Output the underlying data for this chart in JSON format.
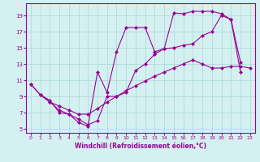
{
  "xlabel": "Windchill (Refroidissement éolien,°C)",
  "bg_color": "#d5f0f0",
  "line_color": "#990099",
  "xlim": [
    -0.5,
    23.5
  ],
  "ylim": [
    4.5,
    20.5
  ],
  "xticks": [
    0,
    1,
    2,
    3,
    4,
    5,
    6,
    7,
    8,
    9,
    10,
    11,
    12,
    13,
    14,
    15,
    16,
    17,
    18,
    19,
    20,
    21,
    22,
    23
  ],
  "yticks": [
    5,
    7,
    9,
    11,
    13,
    15,
    17,
    19
  ],
  "grid_color": "#a8d8d8",
  "line1_x": [
    0,
    1,
    2,
    3,
    4,
    5,
    6,
    7,
    8,
    9,
    10,
    11,
    12,
    13,
    14,
    15,
    16,
    17,
    18,
    19,
    20,
    21,
    22
  ],
  "line1_y": [
    10.5,
    9.2,
    8.5,
    7.0,
    6.8,
    5.8,
    5.3,
    12.0,
    9.5,
    14.5,
    17.5,
    17.5,
    17.5,
    14.5,
    14.9,
    19.3,
    19.2,
    19.5,
    19.5,
    19.5,
    19.2,
    18.5,
    13.2
  ],
  "line2_x": [
    0,
    1,
    2,
    3,
    4,
    5,
    6,
    7,
    8,
    9,
    10,
    11,
    12,
    13,
    14,
    15,
    16,
    17,
    18,
    19,
    20,
    21,
    22,
    23
  ],
  "line2_y": [
    10.5,
    9.2,
    8.3,
    7.8,
    7.3,
    6.8,
    6.8,
    7.5,
    8.3,
    9.0,
    9.7,
    10.3,
    10.9,
    11.5,
    12.0,
    12.5,
    13.0,
    13.5,
    13.0,
    12.5,
    12.5,
    12.7,
    12.7,
    12.5
  ],
  "line3_x": [
    1,
    2,
    3,
    4,
    5,
    6,
    7,
    8,
    9,
    10,
    11,
    12,
    13,
    14,
    15,
    16,
    17,
    18,
    19,
    20,
    21,
    22
  ],
  "line3_y": [
    9.2,
    8.3,
    7.3,
    6.8,
    6.2,
    5.5,
    6.0,
    9.0,
    9.0,
    9.5,
    12.2,
    13.0,
    14.2,
    14.9,
    15.0,
    15.3,
    15.5,
    16.5,
    17.0,
    19.0,
    18.5,
    12.0
  ],
  "marker": "D",
  "markersize": 2.0,
  "linewidth": 0.8
}
